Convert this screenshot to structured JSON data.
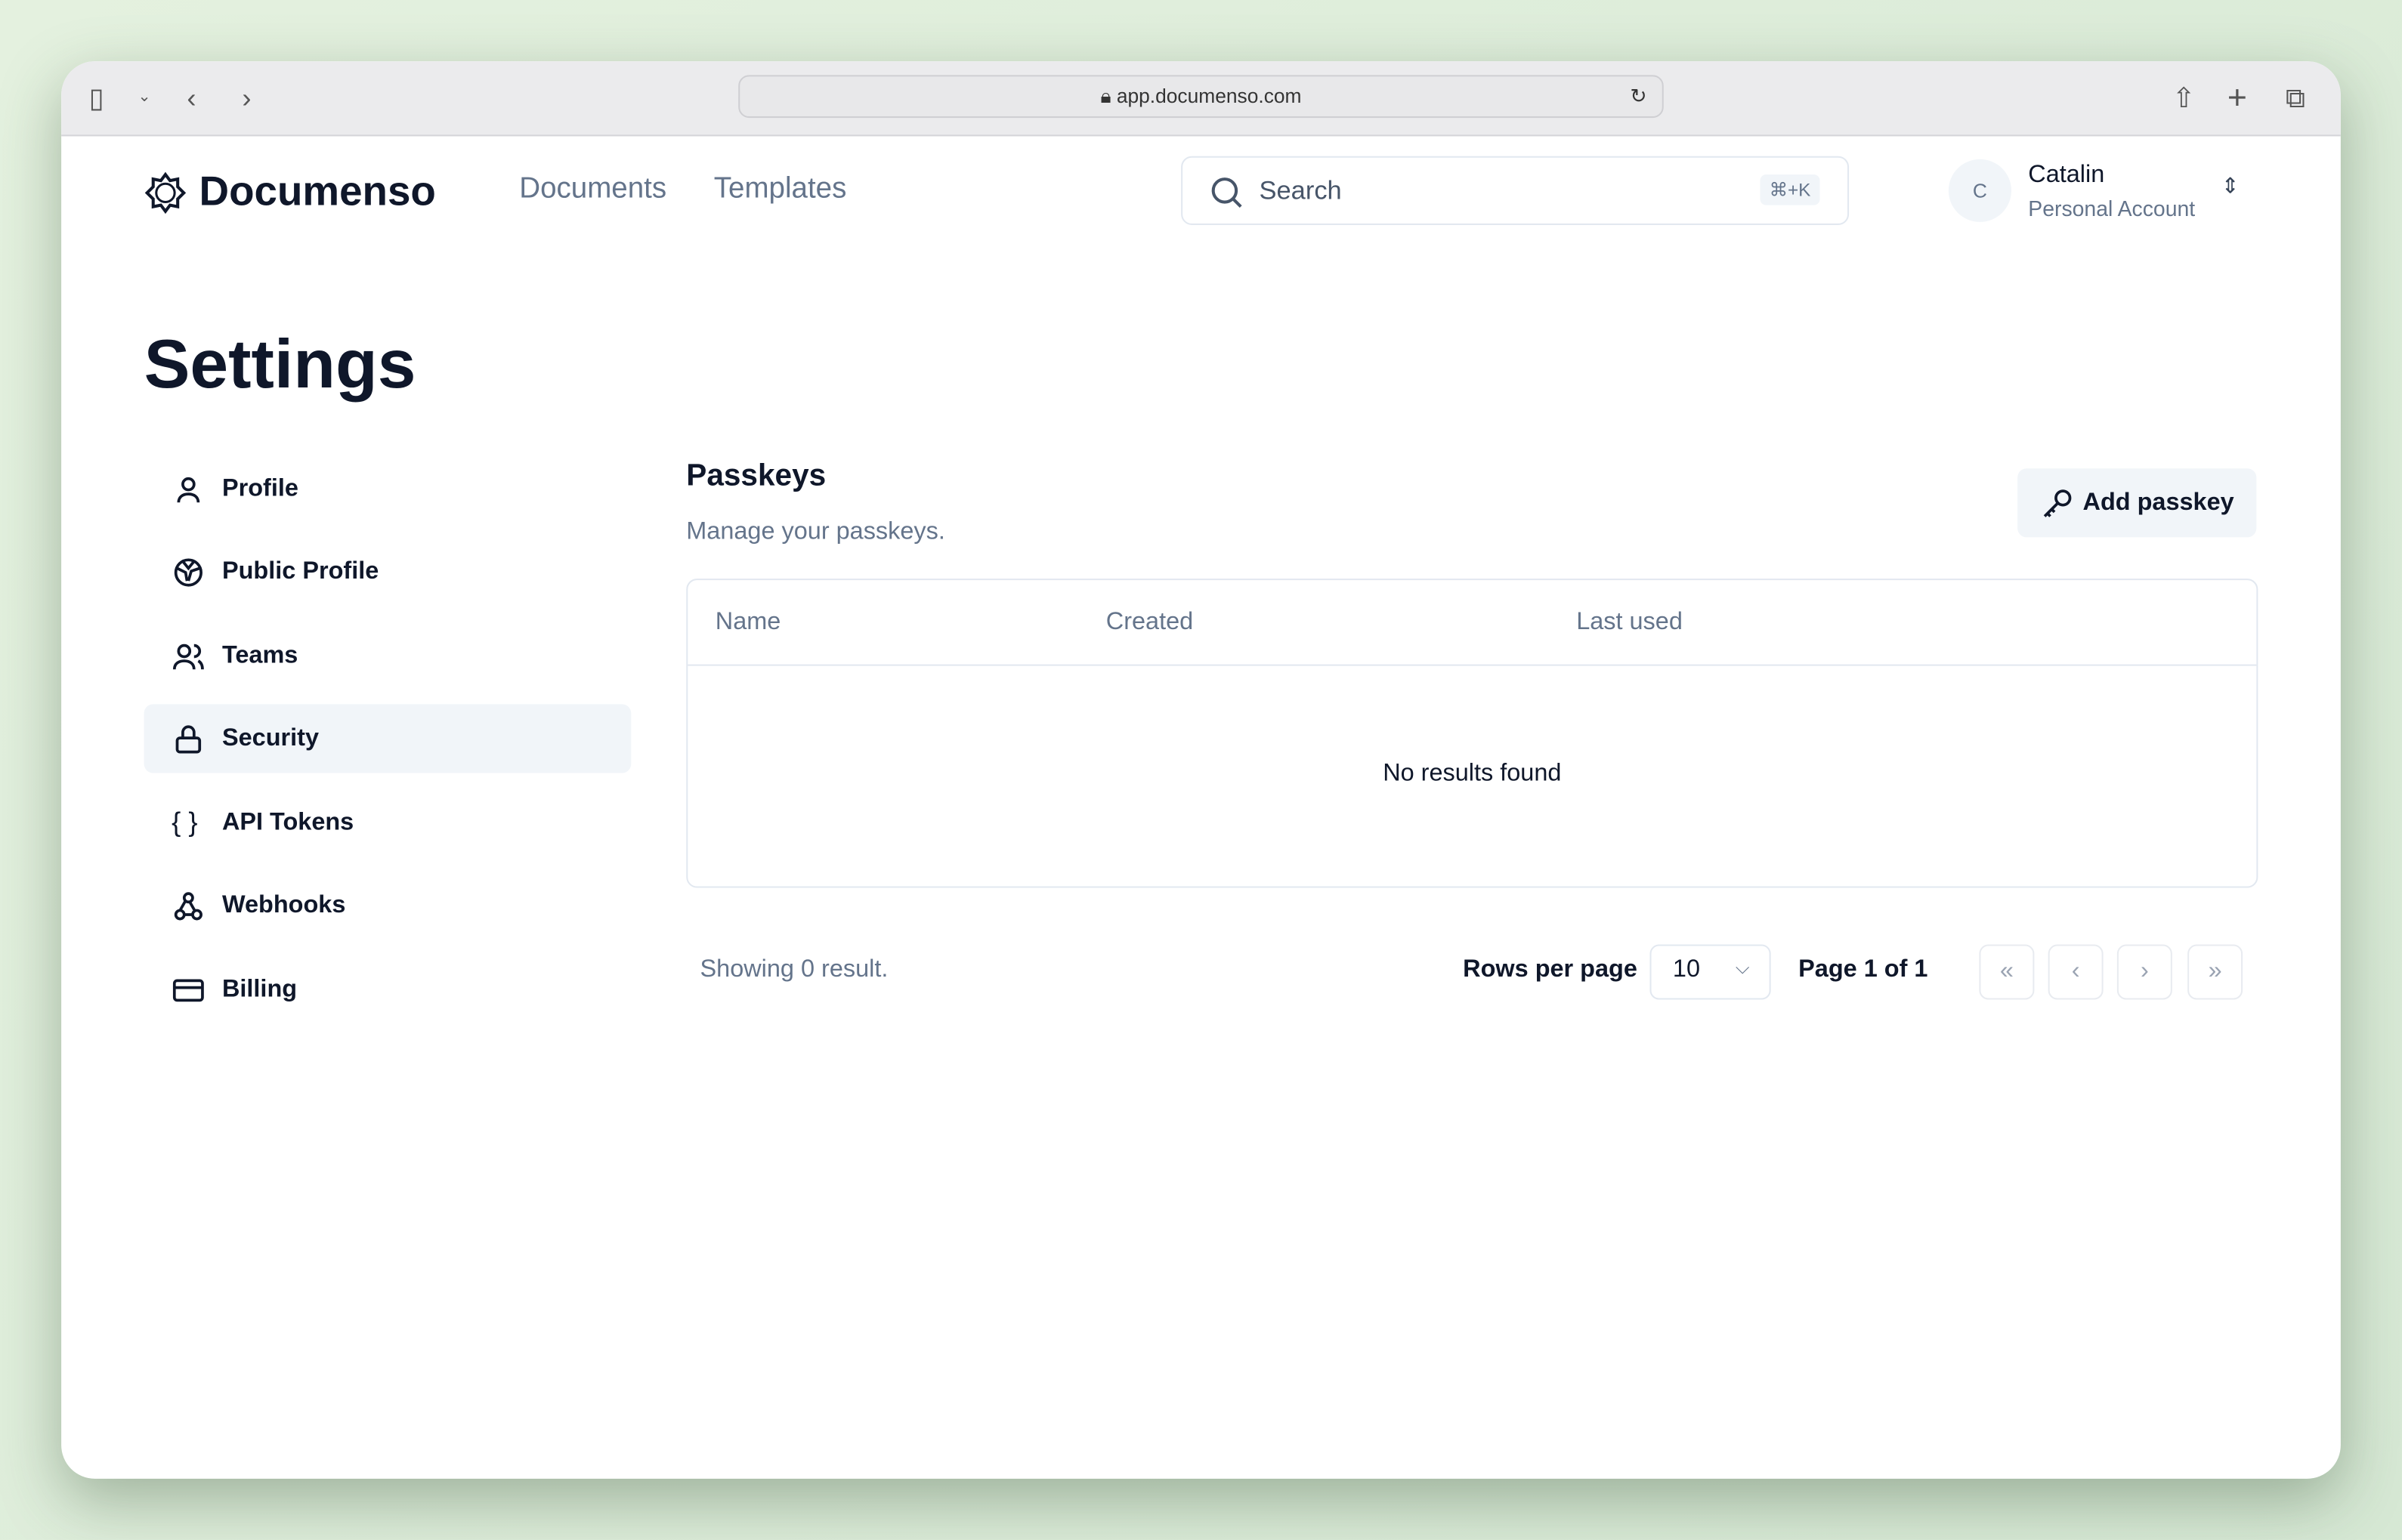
{
  "browser": {
    "url": "app.documenso.com"
  },
  "header": {
    "brand": "Documenso",
    "nav": [
      "Documents",
      "Templates"
    ],
    "search_placeholder": "Search",
    "search_shortcut": "⌘+K",
    "user": {
      "initial": "C",
      "name": "Catalin",
      "account": "Personal Account"
    }
  },
  "page": {
    "title": "Settings"
  },
  "sidebar": {
    "items": [
      {
        "label": "Profile",
        "icon": "user-icon"
      },
      {
        "label": "Public Profile",
        "icon": "globe-icon"
      },
      {
        "label": "Teams",
        "icon": "users-icon"
      },
      {
        "label": "Security",
        "icon": "lock-icon",
        "active": true
      },
      {
        "label": "API Tokens",
        "icon": "braces-icon"
      },
      {
        "label": "Webhooks",
        "icon": "webhook-icon"
      },
      {
        "label": "Billing",
        "icon": "credit-card-icon"
      }
    ]
  },
  "section": {
    "title": "Passkeys",
    "subtitle": "Manage your passkeys.",
    "add_label": "Add passkey"
  },
  "table": {
    "columns": [
      "Name",
      "Created",
      "Last used"
    ],
    "empty": "No results found"
  },
  "pagination": {
    "showing": "Showing 0 result.",
    "rows_label": "Rows per page",
    "rows_value": "10",
    "page_label": "Page 1 of 1"
  }
}
